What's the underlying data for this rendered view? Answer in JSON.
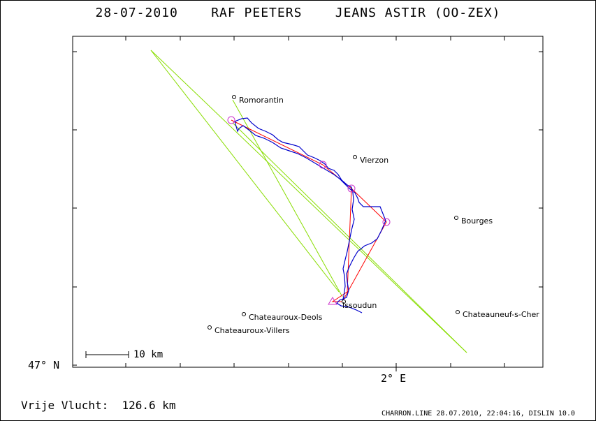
{
  "header": {
    "title": "28-07-2010    RAF PEETERS    JEANS ASTIR (OO-ZEX)"
  },
  "axes": {
    "lat_label": "47° N",
    "lon_label": "2° E"
  },
  "scale": {
    "label": "10 km"
  },
  "summary": {
    "distance_label": "Vrije Vlucht:  126.6 km"
  },
  "footer": {
    "credit": "CHARRON.LINE 28.07.2010, 22:04:16, DISLIN 10.0"
  },
  "towns": [
    {
      "name": "Romorantin"
    },
    {
      "name": "Vierzon"
    },
    {
      "name": "Bourges"
    },
    {
      "name": "Issoudun"
    },
    {
      "name": "Chateauroux-Deols"
    },
    {
      "name": "Chateauroux-Villers"
    },
    {
      "name": "Chateauneuf-s-Cher"
    }
  ],
  "colors": {
    "track": "#0000cc",
    "task": "#ff0000",
    "turnpoint": "#cc33cc",
    "guide": "#88dd00",
    "axis": "#000000"
  }
}
